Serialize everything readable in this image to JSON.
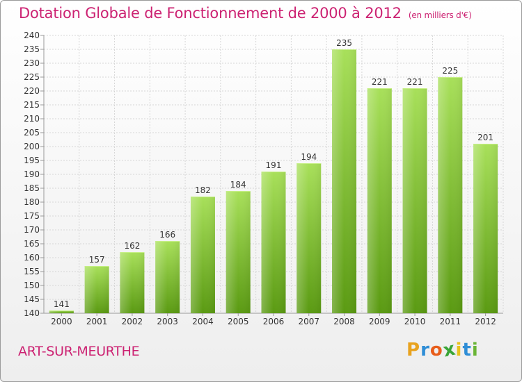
{
  "title": "Dotation Globale de Fonctionnement de 2000 à 2012",
  "unit": "(en milliers d'€)",
  "commune": "ART-SUR-MEURTHE",
  "logo": {
    "letters": [
      "P",
      "r",
      "o",
      "x",
      "i",
      "t",
      "i"
    ],
    "colors": [
      "#e8a21e",
      "#2f8ed6",
      "#e85d1a",
      "#3aa537",
      "#e8c21e",
      "#2f8ed6",
      "#6ab536"
    ]
  },
  "colors": {
    "accent": "#cc2272",
    "bar_light": "#a8e05a",
    "bar_dark": "#5a9a12"
  },
  "chart_data": {
    "type": "bar",
    "categories": [
      "2000",
      "2001",
      "2002",
      "2003",
      "2004",
      "2005",
      "2006",
      "2007",
      "2008",
      "2009",
      "2010",
      "2011",
      "2012"
    ],
    "values": [
      141,
      157,
      162,
      166,
      182,
      184,
      191,
      194,
      235,
      221,
      221,
      225,
      201
    ],
    "ylim": [
      140,
      240
    ],
    "yticks": [
      140,
      145,
      150,
      155,
      160,
      165,
      170,
      175,
      180,
      185,
      190,
      195,
      200,
      205,
      210,
      215,
      220,
      225,
      230,
      235,
      240
    ],
    "grid": true,
    "data_labels": true
  }
}
